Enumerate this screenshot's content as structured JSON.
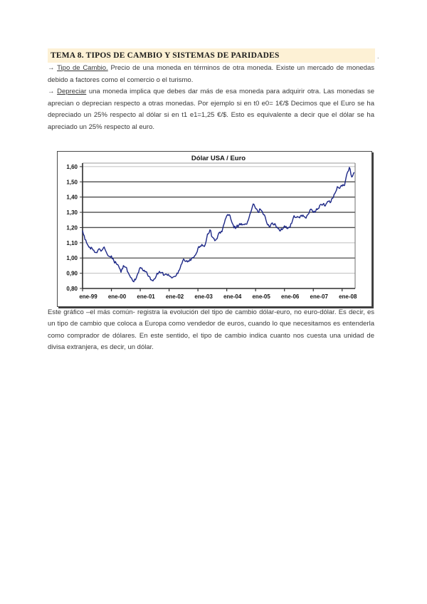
{
  "page": {
    "title": "TEMA 8. TIPOS DE CAMBIO Y SISTEMAS DE PARIDADES",
    "title_trailing_dot": ".",
    "highlight_color": "#fdf1d5"
  },
  "paragraphs": {
    "p1_arrow": "→",
    "p1_term": "Tipo de Cambio.",
    "p1_rest": " Precio de una moneda en términos de otra moneda. Existe un mercado de monedas debido a factores como el comercio o el turismo.",
    "p2_arrow": "→",
    "p2_term": "Depreciar",
    "p2_rest": " una moneda implica que debes dar más de esa moneda para adquirir otra. Las monedas se aprecian o deprecian respecto a otras monedas. Por ejemplo si en t0 e0= 1€/$ Decimos que el Euro se ha depreciado un 25% respecto al dólar si en t1 e1=1,25 €/$. Esto es equivalente a decir que el dólar se ha apreciado un 25% respecto al euro.",
    "p3": "Este gráfico –el más común- registra la evolución del tipo de cambio dólar-euro, no euro-dólar. Es decir, es un tipo de cambio que coloca a Europa como vendedor de euros, cuando lo que necesitamos es entenderla como comprador de dólares. En este sentido, el tipo de cambio indica cuanto nos cuesta una unidad de divisa extranjera, es decir, un dólar."
  },
  "chart_data": {
    "type": "line",
    "title": "Dólar USA / Euro",
    "xlabel": "",
    "ylabel": "",
    "legend": "none",
    "grid": "horizontal",
    "line_color": "#1c2786",
    "xlim": [
      1999.0,
      2008.45
    ],
    "ylim": [
      0.8,
      1.623
    ],
    "y_ticks": [
      0.8,
      0.9,
      1.0,
      1.1,
      1.2,
      1.3,
      1.4,
      1.5,
      1.6
    ],
    "y_tick_labels": [
      "0,80",
      "0,90",
      "1,00",
      "1,10",
      "1,20",
      "1,30",
      "1,40",
      "1,50",
      "1,60"
    ],
    "x_tick_years": [
      1999,
      2000,
      2001,
      2002,
      2003,
      2004,
      2005,
      2006,
      2007,
      2008
    ],
    "x_tick_labels": [
      "ene-99",
      "ene-00",
      "ene-01",
      "ene-02",
      "ene-03",
      "ene-04",
      "ene-05",
      "ene-06",
      "ene-07",
      "ene-08"
    ],
    "series": [
      {
        "name": "Dólar USA / Euro",
        "x_start": 1999.0,
        "x_step_years": 0.0833333,
        "values": [
          1.18,
          1.121,
          1.09,
          1.071,
          1.063,
          1.038,
          1.035,
          1.061,
          1.05,
          1.072,
          1.034,
          1.011,
          1.014,
          0.983,
          0.964,
          0.947,
          0.906,
          0.95,
          0.94,
          0.904,
          0.872,
          0.847,
          0.856,
          0.898,
          0.938,
          0.921,
          0.91,
          0.892,
          0.875,
          0.852,
          0.862,
          0.9,
          0.912,
          0.905,
          0.888,
          0.892,
          0.883,
          0.87,
          0.877,
          0.886,
          0.917,
          0.956,
          0.993,
          0.978,
          0.981,
          0.984,
          1.002,
          1.02,
          1.063,
          1.078,
          1.08,
          1.086,
          1.158,
          1.185,
          1.137,
          1.114,
          1.127,
          1.17,
          1.172,
          1.23,
          1.277,
          1.285,
          1.24,
          1.198,
          1.203,
          1.215,
          1.227,
          1.219,
          1.222,
          1.25,
          1.301,
          1.355,
          1.324,
          1.301,
          1.32,
          1.294,
          1.269,
          1.217,
          1.204,
          1.23,
          1.226,
          1.202,
          1.179,
          1.186,
          1.211,
          1.194,
          1.203,
          1.227,
          1.278,
          1.266,
          1.269,
          1.281,
          1.273,
          1.262,
          1.289,
          1.321,
          1.3,
          1.308,
          1.325,
          1.352,
          1.352,
          1.342,
          1.372,
          1.363,
          1.392,
          1.424,
          1.468,
          1.457,
          1.472,
          1.476,
          1.553,
          1.595,
          1.532,
          1.563
        ]
      }
    ]
  }
}
